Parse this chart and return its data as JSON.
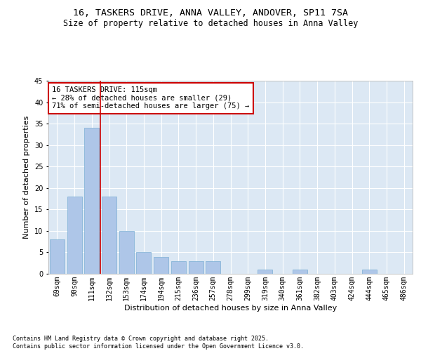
{
  "title_line1": "16, TASKERS DRIVE, ANNA VALLEY, ANDOVER, SP11 7SA",
  "title_line2": "Size of property relative to detached houses in Anna Valley",
  "xlabel": "Distribution of detached houses by size in Anna Valley",
  "ylabel": "Number of detached properties",
  "categories": [
    "69sqm",
    "90sqm",
    "111sqm",
    "132sqm",
    "153sqm",
    "174sqm",
    "194sqm",
    "215sqm",
    "236sqm",
    "257sqm",
    "278sqm",
    "299sqm",
    "319sqm",
    "340sqm",
    "361sqm",
    "382sqm",
    "403sqm",
    "424sqm",
    "444sqm",
    "465sqm",
    "486sqm"
  ],
  "values": [
    8,
    18,
    34,
    18,
    10,
    5,
    4,
    3,
    3,
    3,
    0,
    0,
    1,
    0,
    1,
    0,
    0,
    0,
    1,
    0,
    0
  ],
  "bar_color": "#aec6e8",
  "bar_edge_color": "#7bafd4",
  "grid_color": "#c8d8e8",
  "background_color": "#dce8f4",
  "vline_color": "#cc0000",
  "annotation_text": "16 TASKERS DRIVE: 115sqm\n← 28% of detached houses are smaller (29)\n71% of semi-detached houses are larger (75) →",
  "annotation_box_edgecolor": "#cc0000",
  "ylim": [
    0,
    45
  ],
  "yticks": [
    0,
    5,
    10,
    15,
    20,
    25,
    30,
    35,
    40,
    45
  ],
  "footer_text": "Contains HM Land Registry data © Crown copyright and database right 2025.\nContains public sector information licensed under the Open Government Licence v3.0.",
  "title_fontsize": 9.5,
  "subtitle_fontsize": 8.5,
  "label_fontsize": 8,
  "tick_fontsize": 7,
  "annotation_fontsize": 7.5,
  "footer_fontsize": 6
}
